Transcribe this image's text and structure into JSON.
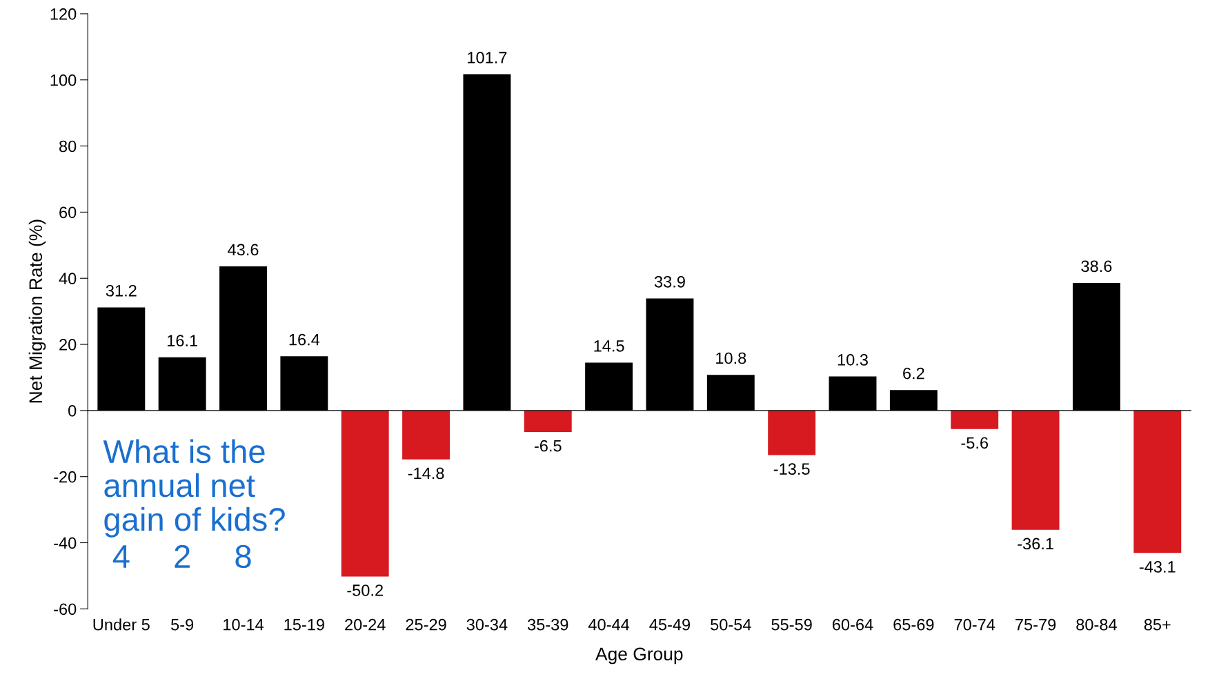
{
  "chart_data": {
    "type": "bar",
    "xlabel": "Age Group",
    "ylabel": "Net Migration Rate (%)",
    "categories": [
      "Under 5",
      "5-9",
      "10-14",
      "15-19",
      "20-24",
      "25-29",
      "30-34",
      "35-39",
      "40-44",
      "45-49",
      "50-54",
      "55-59",
      "60-64",
      "65-69",
      "70-74",
      "75-79",
      "80-84",
      "85+"
    ],
    "values": [
      31.2,
      16.1,
      43.6,
      16.4,
      -50.2,
      -14.8,
      101.7,
      -6.5,
      14.5,
      33.9,
      10.8,
      -13.5,
      10.3,
      6.2,
      -5.6,
      -36.1,
      38.6,
      -43.1
    ],
    "colors": [
      "#000000",
      "#000000",
      "#000000",
      "#000000",
      "#d71920",
      "#d71920",
      "#000000",
      "#d71920",
      "#000000",
      "#000000",
      "#000000",
      "#d71920",
      "#000000",
      "#000000",
      "#d71920",
      "#d71920",
      "#000000",
      "#d71920"
    ],
    "ylim": [
      -60,
      120
    ],
    "yticks": [
      -60,
      -40,
      -20,
      0,
      20,
      40,
      60,
      80,
      100,
      120
    ],
    "data_labels": true,
    "legend": false,
    "annotations": [
      "What is the\nannual net\ngain of kids?",
      "4",
      "2",
      "8"
    ]
  }
}
